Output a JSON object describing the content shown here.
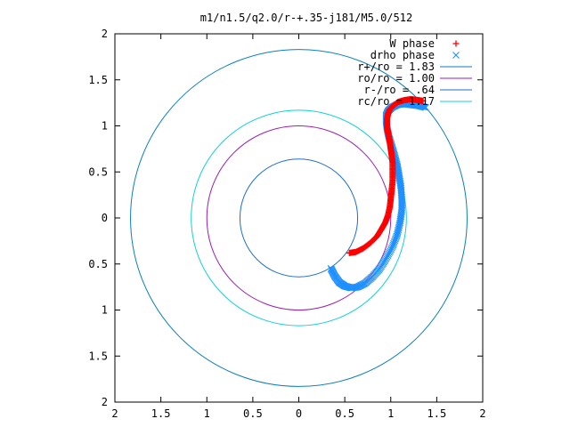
{
  "chart_data": {
    "type": "scatter",
    "title": "m1/n1.5/q2.0/r-+.35-j181/M5.0/512",
    "xlabel": "",
    "ylabel": "",
    "xlim": [
      -2,
      2
    ],
    "ylim": [
      -2,
      2
    ],
    "x_ticks": [
      -2,
      -1.5,
      -1,
      -0.5,
      0,
      0.5,
      1,
      1.5,
      2
    ],
    "y_ticks": [
      -2,
      -1.5,
      -1,
      -0.5,
      0,
      0.5,
      1,
      1.5,
      2
    ],
    "x_tick_labels": [
      "2",
      "1.5",
      "1",
      "0.5",
      "0",
      "0.5",
      "1",
      "1.5",
      "2"
    ],
    "y_tick_labels": [
      "2",
      "1.5",
      "1",
      "0.5",
      "0",
      "0.5",
      "1",
      "1.5",
      "2"
    ],
    "grid": false,
    "legend_position": "top-right",
    "legend": [
      {
        "label": "W phase",
        "kind": "marker",
        "marker": "+",
        "color": "#ff0000"
      },
      {
        "label": "drho phase",
        "kind": "marker",
        "marker": "x",
        "color": "#1e90ff"
      },
      {
        "label": "r+/ro = 1.83",
        "kind": "line",
        "color": "#0b7fbe"
      },
      {
        "label": "ro/ro = 1.00",
        "kind": "line",
        "color": "#9a1fb5"
      },
      {
        "label": "r-/ro = .64",
        "kind": "line",
        "color": "#1e6fd0"
      },
      {
        "label": "rc/ro = 1.17",
        "kind": "line",
        "color": "#12d0d8"
      }
    ],
    "circles": [
      {
        "name": "r+/ro = 1.83",
        "r": 1.83,
        "color": "#0b7fbe"
      },
      {
        "name": "ro/ro = 1.00",
        "r": 1.0,
        "color": "#9a1fb5"
      },
      {
        "name": "r-/ro = .64",
        "r": 0.64,
        "color": "#1e6fd0"
      },
      {
        "name": "rc/ro = 1.17",
        "r": 1.17,
        "color": "#12d0d8"
      }
    ],
    "series": [
      {
        "name": "W phase",
        "marker": "+",
        "color": "#ff0000",
        "x": [
          0.55,
          0.62,
          0.7,
          0.78,
          0.85,
          0.9,
          0.94,
          0.97,
          0.99,
          1.0,
          1.01,
          1.02,
          1.02,
          1.02,
          1.01,
          1.0,
          0.99,
          0.98,
          0.97,
          0.96,
          0.96,
          0.96,
          0.97,
          0.99,
          1.03,
          1.08,
          1.15,
          1.22,
          1.3,
          1.35
        ],
        "y": [
          -0.38,
          -0.37,
          -0.33,
          -0.27,
          -0.2,
          -0.12,
          -0.05,
          0.03,
          0.12,
          0.21,
          0.3,
          0.4,
          0.5,
          0.6,
          0.68,
          0.75,
          0.82,
          0.88,
          0.93,
          0.98,
          1.03,
          1.08,
          1.13,
          1.18,
          1.22,
          1.26,
          1.28,
          1.29,
          1.28,
          1.27
        ]
      },
      {
        "name": "drho phase",
        "marker": "x",
        "color": "#1e90ff",
        "x": [
          0.35,
          0.39,
          0.44,
          0.5,
          0.57,
          0.64,
          0.72,
          0.8,
          0.88,
          0.95,
          1.02,
          1.07,
          1.1,
          1.12,
          1.12,
          1.11,
          1.09,
          1.07,
          1.04,
          1.01,
          0.98,
          0.96,
          0.95,
          0.95,
          0.97,
          1.01,
          1.07,
          1.14,
          1.22,
          1.3,
          1.38
        ],
        "y": [
          -0.55,
          -0.63,
          -0.7,
          -0.74,
          -0.76,
          -0.75,
          -0.71,
          -0.64,
          -0.55,
          -0.44,
          -0.31,
          -0.18,
          -0.05,
          0.08,
          0.21,
          0.34,
          0.46,
          0.57,
          0.68,
          0.78,
          0.88,
          0.97,
          1.05,
          1.11,
          1.16,
          1.2,
          1.23,
          1.24,
          1.23,
          1.22,
          1.2
        ]
      }
    ]
  }
}
